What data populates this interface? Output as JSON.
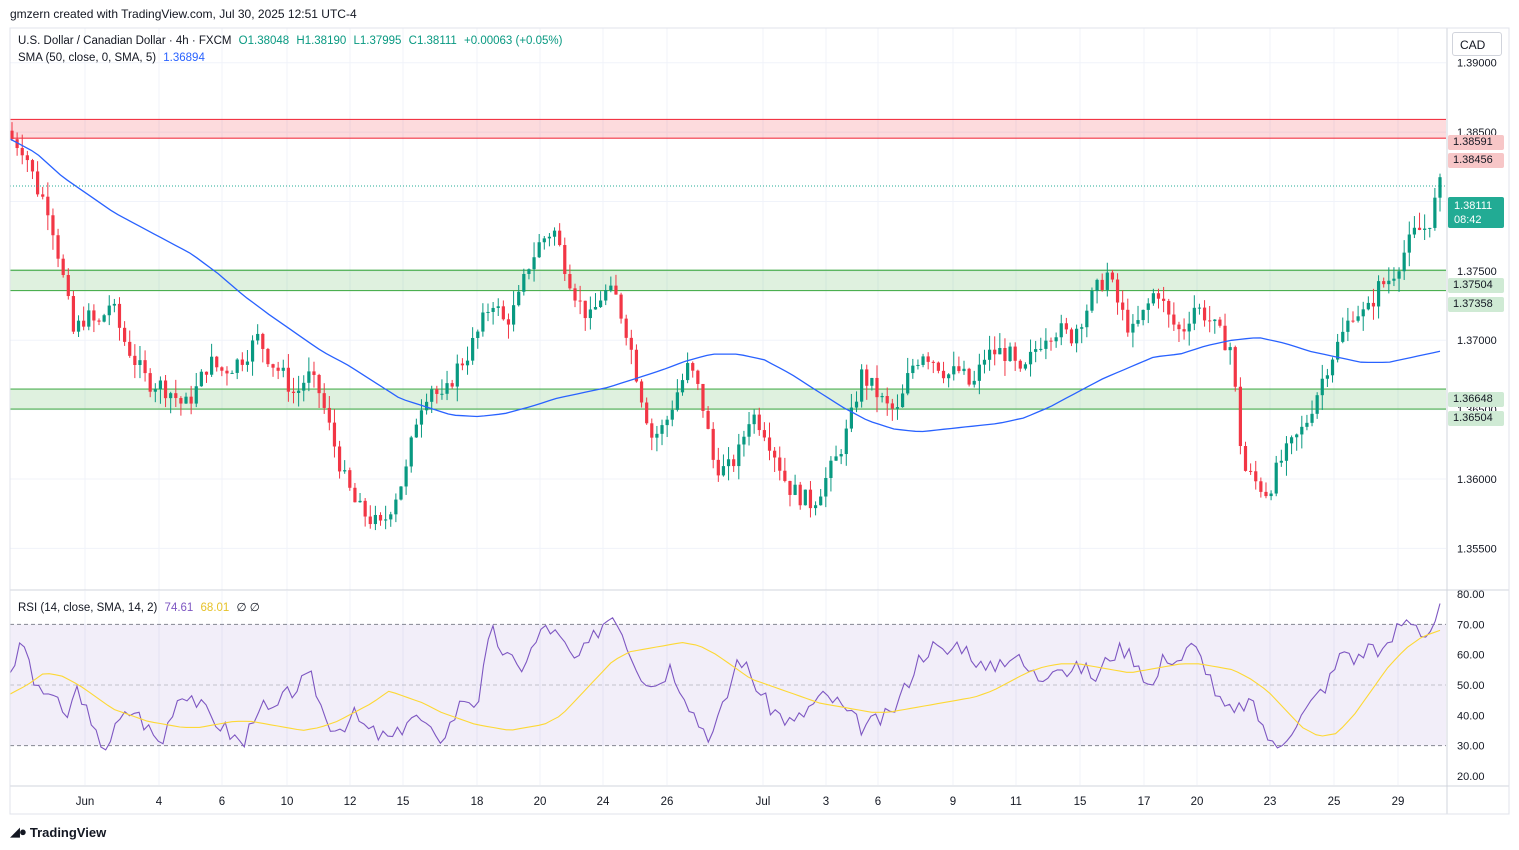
{
  "creator_line": "gmzern created with TradingView.com, Jul 30, 2025 12:51 UTC-4",
  "legend": {
    "symbol": "U.S. Dollar / Canadian Dollar · 4h · FXCM",
    "open": "O1.38048",
    "high": "H1.38190",
    "low": "L1.37995",
    "close": "C1.38111",
    "change": "+0.00063 (+0.05%)",
    "sma_label": "SMA (50, close, 0, SMA, 5)",
    "sma_value": "1.36894",
    "rsi_label": "RSI (14, close, SMA, 14, 2)",
    "rsi_value": "74.61",
    "rsi_ma_value": "68.01",
    "rsi_extra": "∅ ∅"
  },
  "currency_button": "CAD",
  "price_tags": {
    "r1": "1.38591",
    "r2": "1.38456",
    "last_price": "1.38111",
    "countdown": "08:42",
    "s1": "1.37504",
    "s2": "1.37358",
    "s3": "1.36648",
    "s4": "1.36504"
  },
  "brand": "TradingView",
  "colors": {
    "up": "#089981",
    "down": "#f23645",
    "sma": "#2962ff",
    "rsi": "#7e57c2",
    "rsi_ma": "#fdd835",
    "resistance_zone": "#f23645",
    "support_zone": "#4caf50",
    "last_price_tag": "#22ab94"
  },
  "chart_data": [
    {
      "type": "candlestick",
      "title": "U.S. Dollar / Canadian Dollar · 4h · FXCM",
      "timeframe": "4h",
      "x_ticks": [
        "Jun",
        "4",
        "6",
        "10",
        "12",
        "15",
        "18",
        "20",
        "24",
        "26",
        "Jul",
        "3",
        "6",
        "9",
        "11",
        "15",
        "17",
        "20",
        "23",
        "25",
        "29"
      ],
      "y_ticks": [
        1.355,
        1.36,
        1.365,
        1.37,
        1.375,
        1.38,
        1.385,
        1.39
      ],
      "ylim": [
        1.352,
        1.3925
      ],
      "price_path": [
        1.3845,
        1.3838,
        1.381,
        1.3795,
        1.3752,
        1.3705,
        1.3718,
        1.371,
        1.3728,
        1.3702,
        1.3685,
        1.367,
        1.3668,
        1.3662,
        1.3652,
        1.3665,
        1.3685,
        1.3678,
        1.3682,
        1.369,
        1.3702,
        1.3685,
        1.3675,
        1.366,
        1.3675,
        1.3662,
        1.363,
        1.36,
        1.358,
        1.3572,
        1.3565,
        1.3585,
        1.3605,
        1.365,
        1.3668,
        1.3655,
        1.3678,
        1.369,
        1.3708,
        1.373,
        1.3712,
        1.3725,
        1.3755,
        1.3772,
        1.378,
        1.3752,
        1.3728,
        1.3715,
        1.3735,
        1.3732,
        1.3705,
        1.3665,
        1.363,
        1.3638,
        1.3662,
        1.3682,
        1.3658,
        1.3612,
        1.3605,
        1.3618,
        1.3648,
        1.3638,
        1.3618,
        1.3595,
        1.3588,
        1.3582,
        1.3598,
        1.3615,
        1.3638,
        1.3675,
        1.3665,
        1.3652,
        1.3648,
        1.368,
        1.3692,
        1.3685,
        1.3675,
        1.3678,
        1.3665,
        1.3688,
        1.3692,
        1.369,
        1.3672,
        1.3692,
        1.3705,
        1.3708,
        1.3702,
        1.3718,
        1.3735,
        1.3748,
        1.3722,
        1.3705,
        1.372,
        1.3738,
        1.3715,
        1.3705,
        1.3725,
        1.3718,
        1.3705,
        1.3695,
        1.3608,
        1.3598,
        1.359,
        1.3612,
        1.3625,
        1.3638,
        1.3662,
        1.3685,
        1.3702,
        1.3722,
        1.3718,
        1.3738,
        1.3745,
        1.3762,
        1.3778,
        1.3782,
        1.3811
      ],
      "sma_50_path": [
        1.3845,
        1.3835,
        1.3818,
        1.3805,
        1.3792,
        1.3782,
        1.3772,
        1.3762,
        1.3748,
        1.3732,
        1.3718,
        1.3705,
        1.3692,
        1.3682,
        1.367,
        1.3658,
        1.3652,
        1.3646,
        1.3645,
        1.3647,
        1.3652,
        1.3658,
        1.3662,
        1.3666,
        1.3672,
        1.3678,
        1.3685,
        1.369,
        1.369,
        1.3686,
        1.3676,
        1.3664,
        1.3652,
        1.3642,
        1.3636,
        1.3634,
        1.3636,
        1.3638,
        1.364,
        1.3644,
        1.3652,
        1.3662,
        1.3672,
        1.368,
        1.3688,
        1.369,
        1.3696,
        1.37,
        1.3702,
        1.3698,
        1.3692,
        1.3688,
        1.3684,
        1.3684,
        1.3688,
        1.3692
      ],
      "zones": {
        "resistance": [
          1.38456,
          1.38591
        ],
        "support_upper": [
          1.37358,
          1.37504
        ],
        "support_lower": [
          1.36504,
          1.36648
        ]
      },
      "series": [
        {
          "name": "U.S. Dollar / Canadian Dollar",
          "last_close": 1.38111,
          "last_high": 1.3819,
          "last_low": 1.37995
        },
        {
          "name": "SMA (50, close, 0, SMA, 5)",
          "last": 1.36894
        }
      ]
    },
    {
      "type": "line",
      "title": "RSI (14, close, SMA, 14, 2)",
      "y_ticks": [
        20,
        30,
        40,
        50,
        60,
        70,
        80
      ],
      "ylim": [
        17,
        81
      ],
      "band": [
        30,
        70
      ],
      "rsi_path": [
        55,
        64,
        47,
        48,
        38,
        50,
        34,
        30,
        38,
        42,
        36,
        30,
        45,
        48,
        42,
        38,
        34,
        30,
        44,
        40,
        46,
        50,
        52,
        38,
        36,
        40,
        35,
        33,
        32,
        40,
        38,
        31,
        37,
        46,
        44,
        68,
        60,
        55,
        62,
        70,
        65,
        58,
        62,
        70,
        74,
        62,
        53,
        50,
        56,
        48,
        38,
        33,
        44,
        60,
        52,
        44,
        40,
        37,
        42,
        46,
        45,
        40,
        36,
        38,
        40,
        48,
        58,
        63,
        60,
        64,
        60,
        54,
        58,
        60,
        55,
        52,
        58,
        54,
        56,
        52,
        60,
        62,
        58,
        48,
        60,
        58,
        63,
        56,
        44,
        40,
        45,
        38,
        28,
        35,
        40,
        46,
        52,
        62,
        58,
        64,
        60,
        70,
        72,
        66,
        74.61
      ],
      "rsi_ma_path": [
        47,
        50,
        54,
        53,
        50,
        46,
        42,
        40,
        38,
        37,
        36,
        36,
        37,
        38,
        38,
        37,
        36,
        35,
        36,
        38,
        41,
        44,
        48,
        46,
        44,
        41,
        39,
        37,
        36,
        35,
        36,
        37,
        40,
        46,
        52,
        58,
        61,
        62,
        63,
        64,
        63,
        60,
        56,
        52,
        50,
        48,
        46,
        44,
        43,
        42,
        41,
        41,
        42,
        43,
        44,
        45,
        46,
        48,
        51,
        54,
        56,
        57,
        57,
        56,
        55,
        54,
        55,
        56,
        57,
        57,
        56,
        55,
        52,
        48,
        42,
        36,
        33,
        34,
        40,
        48,
        56,
        62,
        66,
        68.01
      ],
      "series": [
        {
          "name": "RSI",
          "last": 74.61
        },
        {
          "name": "RSI SMA",
          "last": 68.01
        }
      ]
    }
  ]
}
